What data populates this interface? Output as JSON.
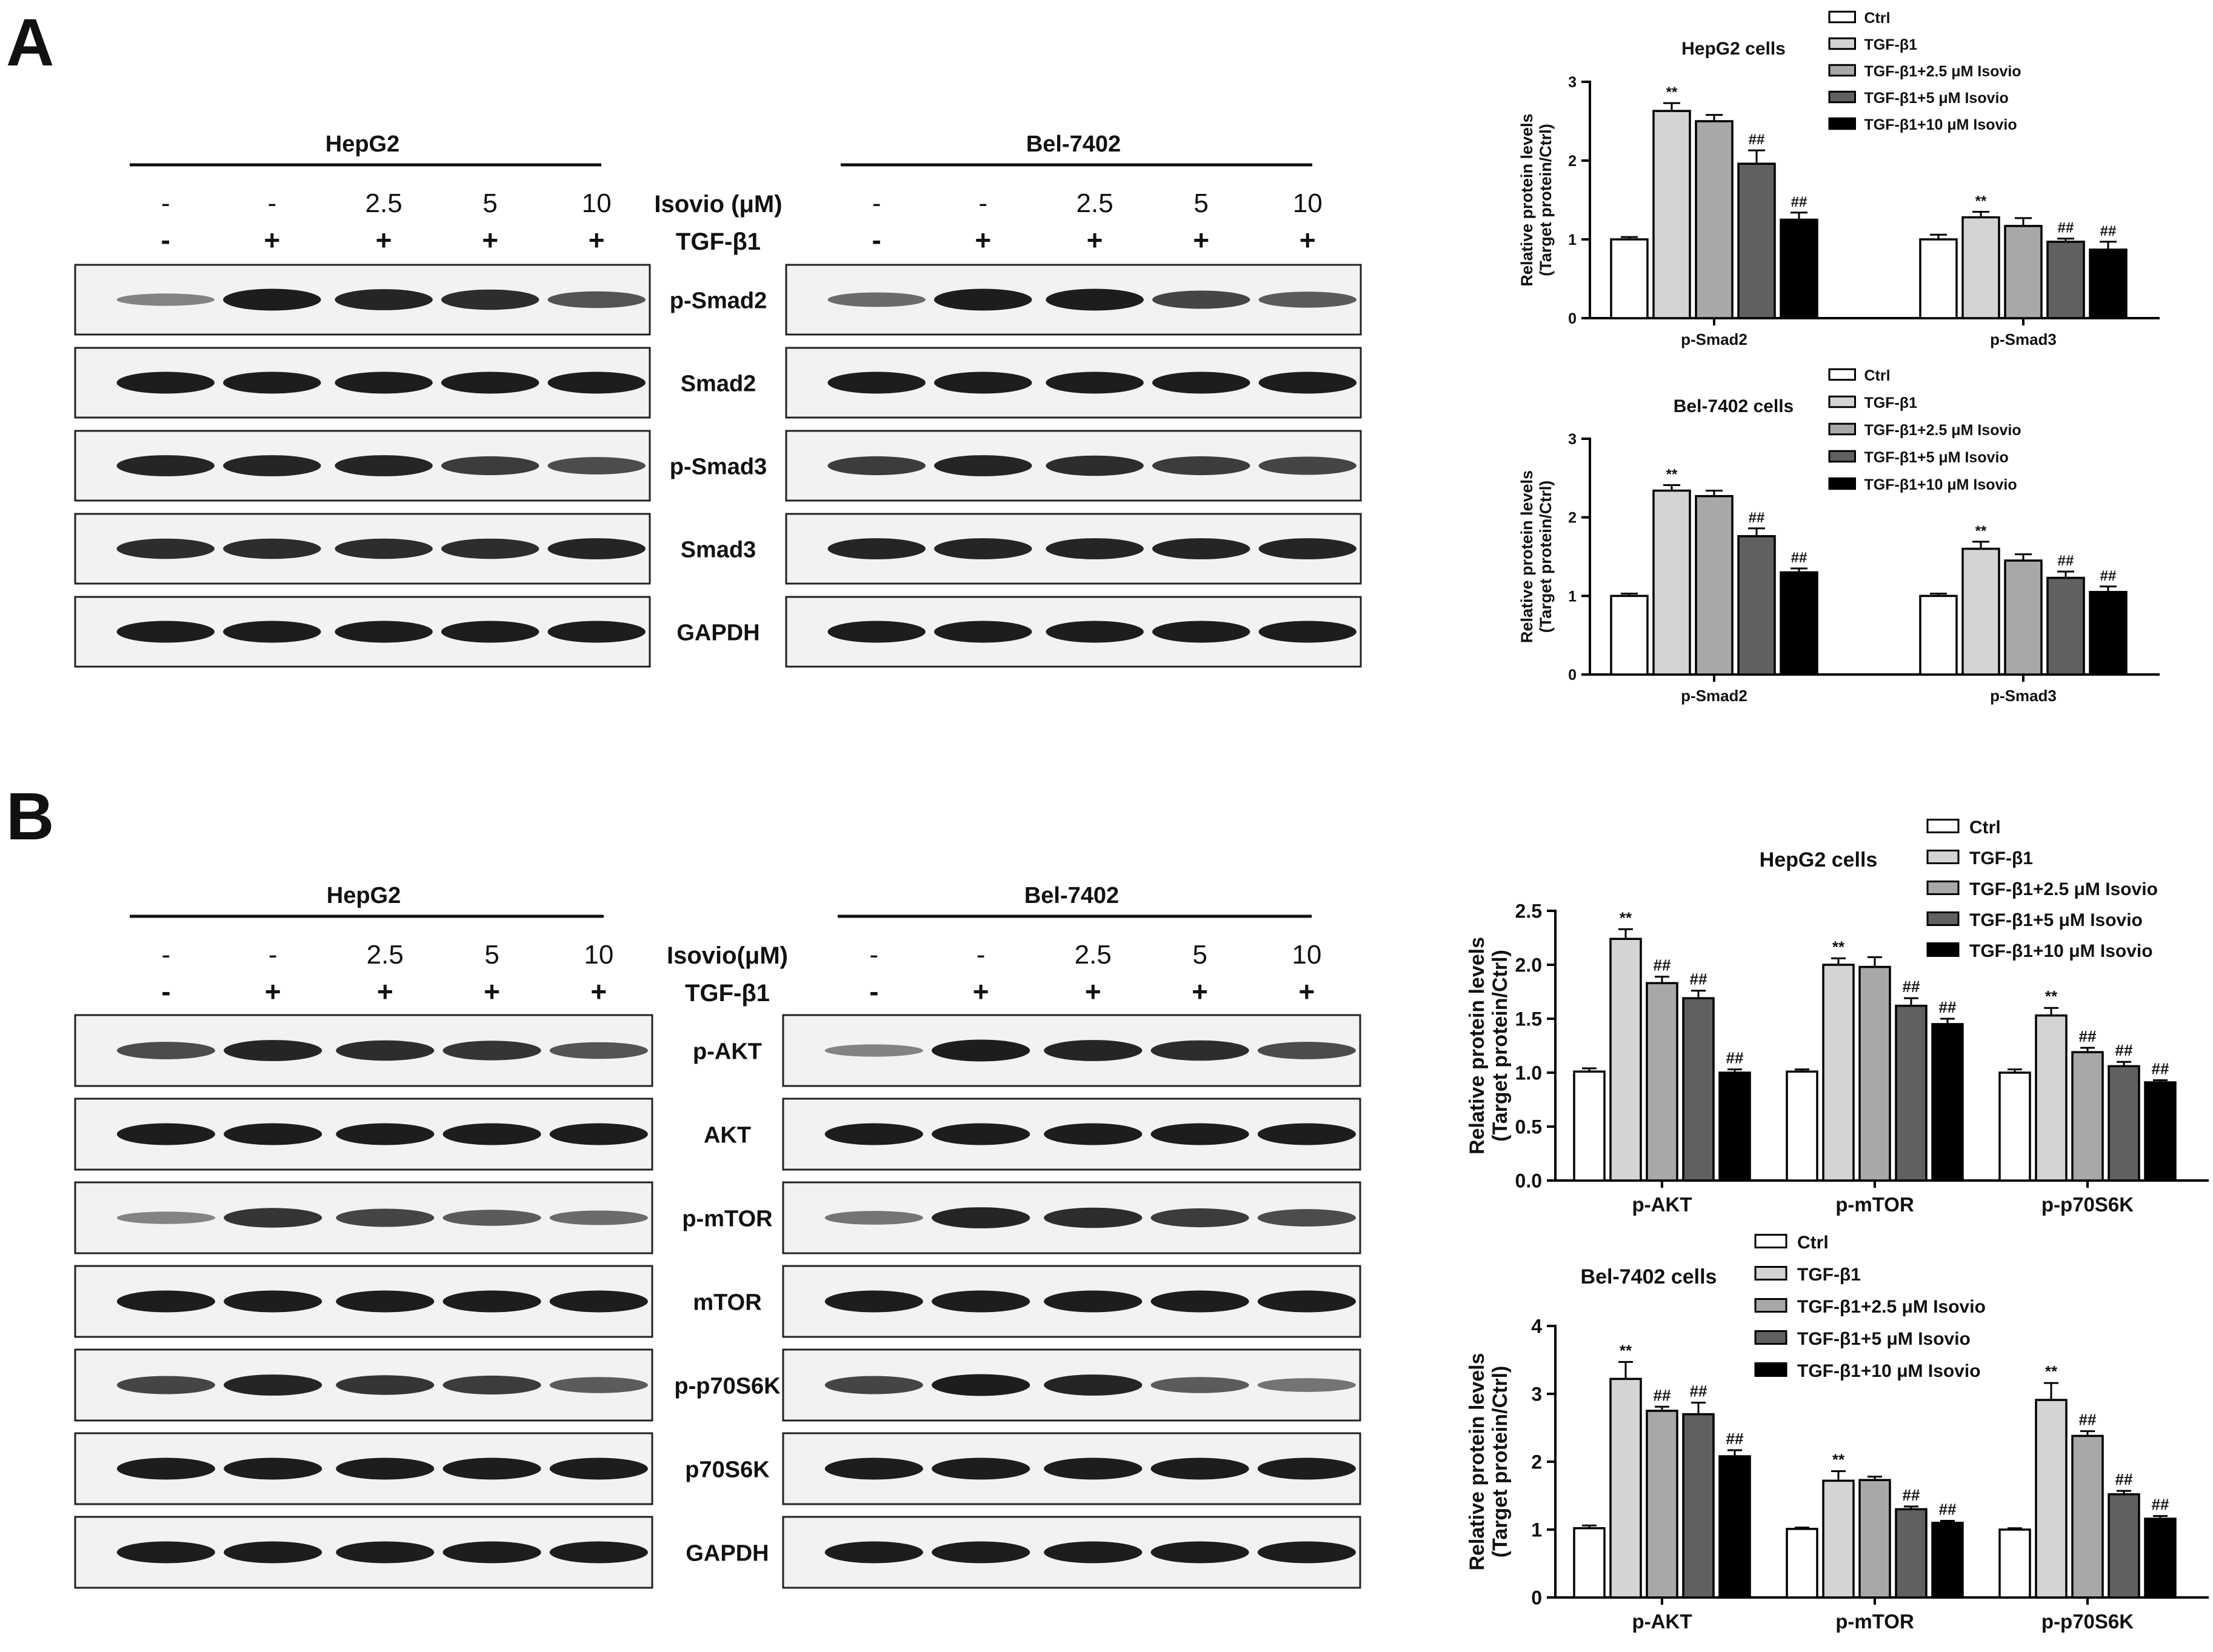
{
  "figure": {
    "panel_a_label": "A",
    "panel_b_label": "B",
    "legend_labels": [
      "Ctrl",
      "TGF-β1",
      "TGF-β1+2.5 μM Isovio",
      "TGF-β1+5 μM Isovio",
      "TGF-β1+10 μM Isovio"
    ],
    "bar_colors": [
      "#ffffff",
      "#d4d4d4",
      "#a8a8a8",
      "#606060",
      "#000000"
    ],
    "ylabel_line1": "Relative protein levels",
    "ylabel_line2": "(Target protein/Ctrl)"
  },
  "panel_a": {
    "blots": [
      {
        "cell_line": "HepG2",
        "isovio_values": [
          "-",
          "-",
          "2.5",
          "5",
          "10"
        ],
        "tgf_values": [
          "-",
          "+",
          "+",
          "+",
          "+"
        ]
      },
      {
        "cell_line": "Bel-7402",
        "isovio_values": [
          "-",
          "-",
          "2.5",
          "5",
          "10"
        ],
        "tgf_values": [
          "-",
          "+",
          "+",
          "+",
          "+"
        ]
      }
    ],
    "isovio_label": "Isovio (μM)",
    "tgf_label": "TGF-β1",
    "protein_labels": [
      "p-Smad2",
      "Smad2",
      "p-Smad3",
      "Smad3",
      "GAPDH"
    ]
  },
  "panel_b": {
    "blots": [
      {
        "cell_line": "HepG2",
        "isovio_values": [
          "-",
          "-",
          "2.5",
          "5",
          "10"
        ],
        "tgf_values": [
          "-",
          "+",
          "+",
          "+",
          "+"
        ]
      },
      {
        "cell_line": "Bel-7402",
        "isovio_values": [
          "-",
          "-",
          "2.5",
          "5",
          "10"
        ],
        "tgf_values": [
          "-",
          "+",
          "+",
          "+",
          "+"
        ]
      }
    ],
    "isovio_label": "Isovio(μM)",
    "tgf_label": "TGF-β1",
    "protein_labels": [
      "p-AKT",
      "AKT",
      "p-mTOR",
      "mTOR",
      "p-p70S6K",
      "p70S6K",
      "GAPDH"
    ]
  },
  "chart_data": [
    {
      "type": "bar",
      "title": "HepG2 cells",
      "categories": [
        "p-Smad2",
        "p-Smad3"
      ],
      "ylim": [
        0,
        3
      ],
      "yticks": [
        "0",
        "1",
        "2",
        "3"
      ],
      "series": [
        {
          "name": "Ctrl",
          "values": [
            1.0,
            1.0
          ],
          "errors": [
            0.03,
            0.06
          ],
          "annotations": [
            "",
            ""
          ]
        },
        {
          "name": "TGF-β1",
          "values": [
            2.63,
            1.28
          ],
          "errors": [
            0.1,
            0.07
          ],
          "annotations": [
            "**",
            "**"
          ]
        },
        {
          "name": "TGF-β1+2.5 μM Isovio",
          "values": [
            2.5,
            1.17
          ],
          "errors": [
            0.08,
            0.1
          ],
          "annotations": [
            "",
            ""
          ]
        },
        {
          "name": "TGF-β1+5 μM Isovio",
          "values": [
            1.96,
            0.97
          ],
          "errors": [
            0.17,
            0.04
          ],
          "annotations": [
            "##",
            "##"
          ]
        },
        {
          "name": "TGF-β1+10 μM Isovio",
          "values": [
            1.25,
            0.87
          ],
          "errors": [
            0.09,
            0.1
          ],
          "annotations": [
            "##",
            "##"
          ]
        }
      ]
    },
    {
      "type": "bar",
      "title": "Bel-7402 cells",
      "categories": [
        "p-Smad2",
        "p-Smad3"
      ],
      "ylim": [
        0,
        3
      ],
      "yticks": [
        "0",
        "1",
        "2",
        "3"
      ],
      "series": [
        {
          "name": "Ctrl",
          "values": [
            1.0,
            1.0
          ],
          "errors": [
            0.03,
            0.03
          ],
          "annotations": [
            "",
            ""
          ]
        },
        {
          "name": "TGF-β1",
          "values": [
            2.34,
            1.6
          ],
          "errors": [
            0.07,
            0.09
          ],
          "annotations": [
            "**",
            "**"
          ]
        },
        {
          "name": "TGF-β1+2.5 μM Isovio",
          "values": [
            2.27,
            1.45
          ],
          "errors": [
            0.07,
            0.08
          ],
          "annotations": [
            "",
            ""
          ]
        },
        {
          "name": "TGF-β1+5 μM Isovio",
          "values": [
            1.76,
            1.23
          ],
          "errors": [
            0.1,
            0.08
          ],
          "annotations": [
            "##",
            "##"
          ]
        },
        {
          "name": "TGF-β1+10 μM Isovio",
          "values": [
            1.3,
            1.05
          ],
          "errors": [
            0.05,
            0.07
          ],
          "annotations": [
            "##",
            "##"
          ]
        }
      ]
    },
    {
      "type": "bar",
      "title": "HepG2 cells",
      "categories": [
        "p-AKT",
        "p-mTOR",
        "p-p70S6K"
      ],
      "ylim": [
        0,
        2.5
      ],
      "yticks": [
        "0.0",
        "0.5",
        "1.0",
        "1.5",
        "2.0",
        "2.5"
      ],
      "series": [
        {
          "name": "Ctrl",
          "values": [
            1.01,
            1.01,
            1.0
          ],
          "errors": [
            0.03,
            0.02,
            0.03
          ],
          "annotations": [
            "",
            "",
            ""
          ]
        },
        {
          "name": "TGF-β1",
          "values": [
            2.24,
            2.0,
            1.53
          ],
          "errors": [
            0.09,
            0.06,
            0.07
          ],
          "annotations": [
            "**",
            "**",
            "**"
          ]
        },
        {
          "name": "TGF-β1+2.5 μM Isovio",
          "values": [
            1.83,
            1.98,
            1.19
          ],
          "errors": [
            0.06,
            0.09,
            0.04
          ],
          "annotations": [
            "##",
            "",
            "##"
          ]
        },
        {
          "name": "TGF-β1+5 μM Isovio",
          "values": [
            1.69,
            1.62,
            1.06
          ],
          "errors": [
            0.07,
            0.07,
            0.04
          ],
          "annotations": [
            "##",
            "##",
            "##"
          ]
        },
        {
          "name": "TGF-β1+10 μM Isovio",
          "values": [
            1.0,
            1.45,
            0.91
          ],
          "errors": [
            0.03,
            0.05,
            0.02
          ],
          "annotations": [
            "##",
            "##",
            "##"
          ]
        }
      ]
    },
    {
      "type": "bar",
      "title": "Bel-7402 cells",
      "categories": [
        "p-AKT",
        "p-mTOR",
        "p-p70S6K"
      ],
      "ylim": [
        0,
        4
      ],
      "yticks": [
        "0",
        "1",
        "2",
        "3",
        "4"
      ],
      "series": [
        {
          "name": "Ctrl",
          "values": [
            1.02,
            1.01,
            1.0
          ],
          "errors": [
            0.04,
            0.02,
            0.02
          ],
          "annotations": [
            "",
            "",
            ""
          ]
        },
        {
          "name": "TGF-β1",
          "values": [
            3.22,
            1.72,
            2.91
          ],
          "errors": [
            0.25,
            0.14,
            0.25
          ],
          "annotations": [
            "**",
            "**",
            "**"
          ]
        },
        {
          "name": "TGF-β1+2.5 μM Isovio",
          "values": [
            2.75,
            1.73,
            2.38
          ],
          "errors": [
            0.06,
            0.05,
            0.07
          ],
          "annotations": [
            "##",
            "",
            "##"
          ]
        },
        {
          "name": "TGF-β1+5 μM Isovio",
          "values": [
            2.7,
            1.3,
            1.52
          ],
          "errors": [
            0.17,
            0.04,
            0.05
          ],
          "annotations": [
            "##",
            "##",
            "##"
          ]
        },
        {
          "name": "TGF-β1+10 μM Isovio",
          "values": [
            2.08,
            1.1,
            1.16
          ],
          "errors": [
            0.09,
            0.03,
            0.04
          ],
          "annotations": [
            "##",
            "##",
            "##"
          ]
        }
      ]
    }
  ]
}
